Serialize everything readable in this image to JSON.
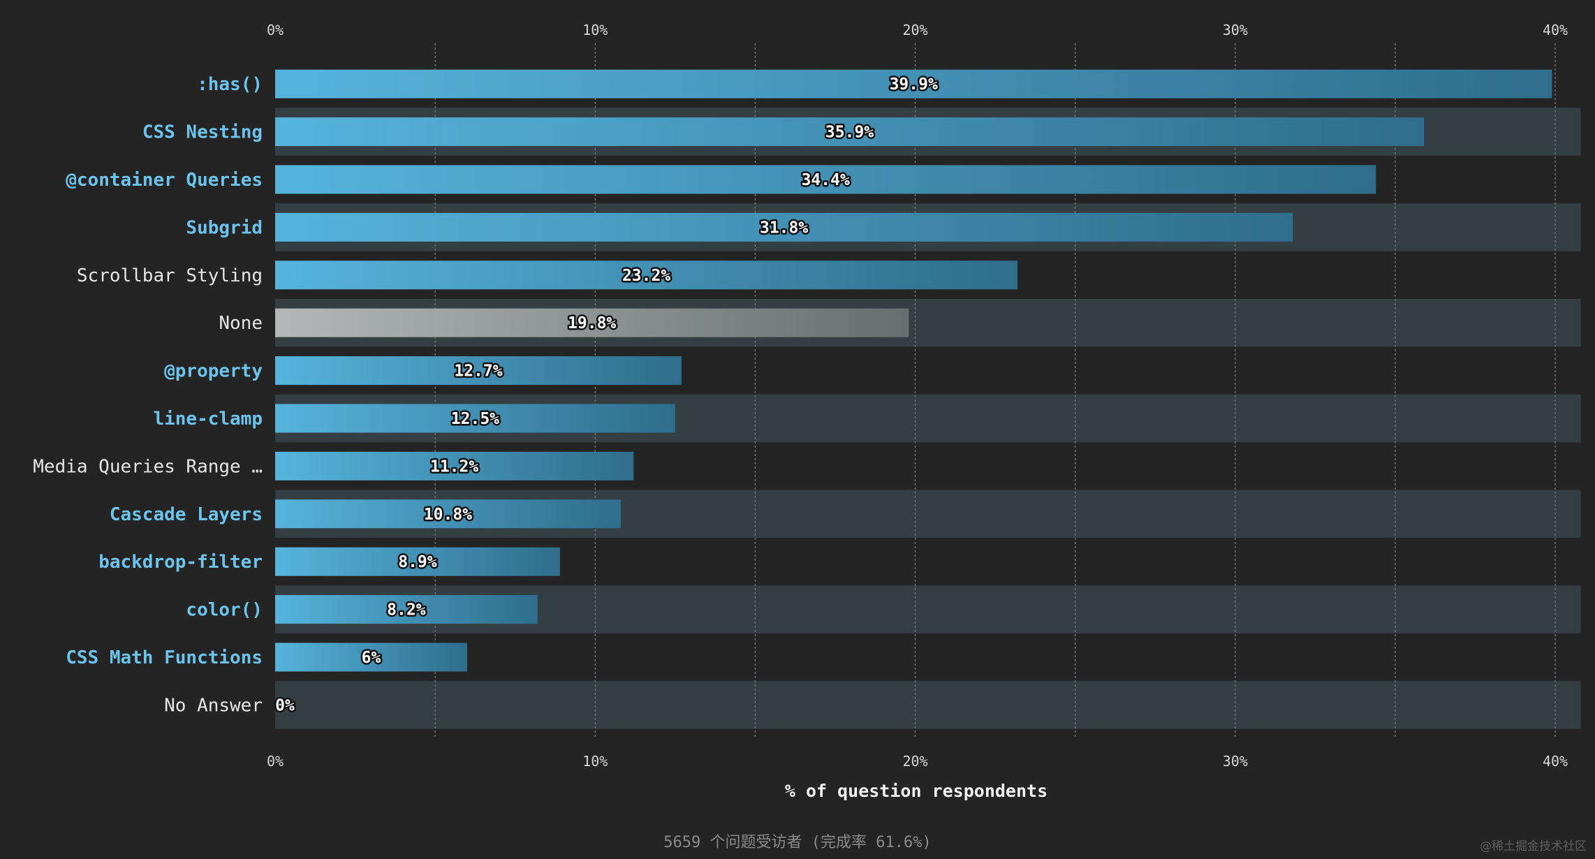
{
  "chart_data": {
    "type": "bar",
    "orientation": "horizontal",
    "xlabel": "% of question respondents",
    "xlim": [
      0,
      40.8
    ],
    "xticks": [
      0,
      10,
      20,
      30,
      40
    ],
    "xtick_labels": [
      "0%",
      "10%",
      "20%",
      "30%",
      "40%"
    ],
    "categories": [
      ":has()",
      "CSS Nesting",
      "@container Queries",
      "Subgrid",
      "Scrollbar Styling",
      "None",
      "@property",
      "line-clamp",
      "Media Queries Range …",
      "Cascade Layers",
      "backdrop-filter",
      "color()",
      "CSS Math Functions",
      "No Answer"
    ],
    "values": [
      39.9,
      35.9,
      34.4,
      31.8,
      23.2,
      19.8,
      12.7,
      12.5,
      11.2,
      10.8,
      8.9,
      8.2,
      6,
      0
    ],
    "value_labels": [
      "39.9%",
      "35.9%",
      "34.4%",
      "31.8%",
      "23.2%",
      "19.8%",
      "12.7%",
      "12.5%",
      "11.2%",
      "10.8%",
      "8.9%",
      "8.2%",
      "6%",
      "0%"
    ],
    "highlighted": [
      true,
      true,
      true,
      true,
      false,
      false,
      true,
      true,
      false,
      true,
      true,
      true,
      true,
      false
    ],
    "neutral": [
      false,
      false,
      false,
      false,
      false,
      true,
      false,
      false,
      false,
      false,
      false,
      false,
      false,
      false
    ],
    "grid": true,
    "colors": {
      "bar_start": "#56b4dc",
      "bar_end": "#2f6d8c",
      "neutral_start": "#b4b7b8",
      "neutral_end": "#64706f",
      "band": "#343f44",
      "grid": "#7c7c7c",
      "highlight_text": "#6cc4ec"
    }
  },
  "footer": "5659 个问题受访者 (完成率 61.6%)",
  "watermark": "@稀土掘金技术社区"
}
